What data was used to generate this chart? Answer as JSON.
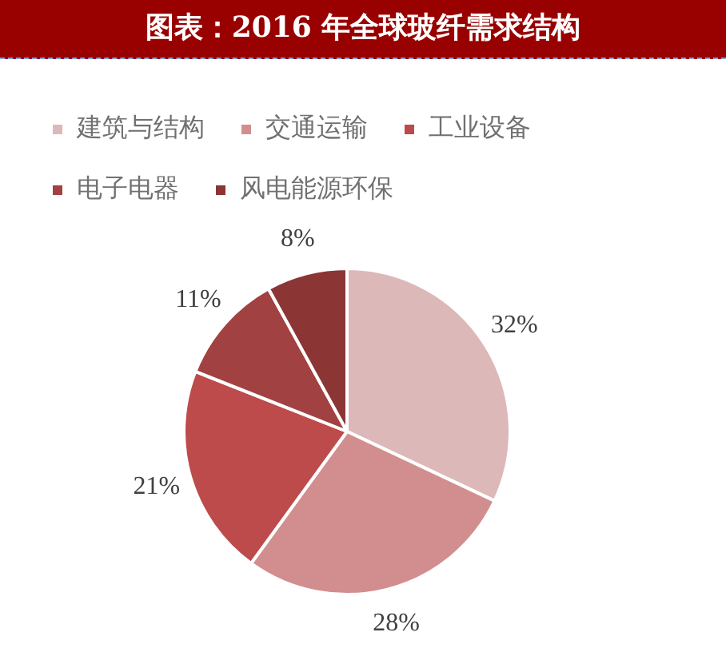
{
  "chart_data": {
    "type": "pie",
    "title": "图表：2016 年全球玻纤需求结构",
    "categories": [
      "建筑与结构",
      "交通运输",
      "工业设备",
      "电子电器",
      "风电能源环保"
    ],
    "values": [
      32,
      28,
      21,
      11,
      8
    ],
    "colors": [
      "#ddb8b8",
      "#d28e8e",
      "#bd4b4b",
      "#a24141",
      "#8b3535"
    ],
    "value_labels": [
      "32%",
      "28%",
      "21%",
      "11%",
      "8%"
    ],
    "legend": "top"
  }
}
